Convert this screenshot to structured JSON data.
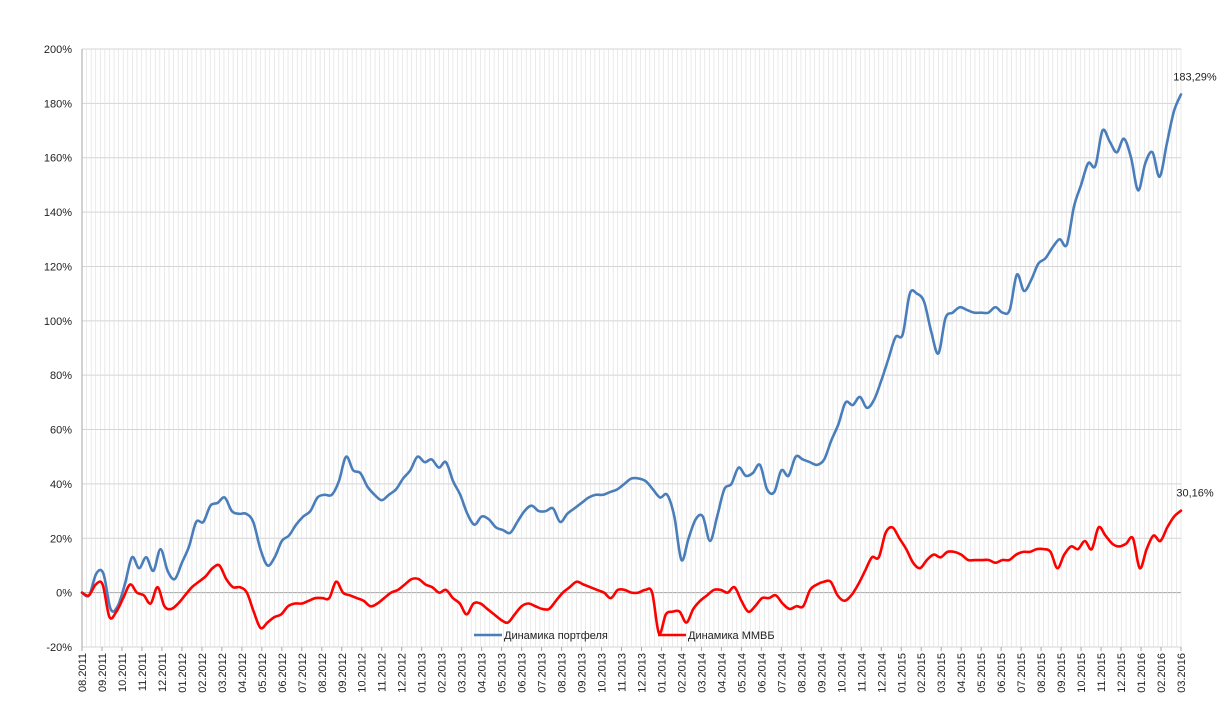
{
  "chart_data": {
    "type": "line",
    "y_tick_labels": [
      "-20%",
      "0%",
      "20%",
      "40%",
      "60%",
      "80%",
      "100%",
      "120%",
      "140%",
      "160%",
      "180%",
      "200%"
    ],
    "y_ticks": [
      -20,
      0,
      20,
      40,
      60,
      80,
      100,
      120,
      140,
      160,
      180,
      200
    ],
    "ylim": [
      -20,
      200
    ],
    "x_tick_labels": [
      "08.2011",
      "09.2011",
      "10.2011",
      "11.2011",
      "12.2011",
      "01.2012",
      "02.2012",
      "03.2012",
      "04.2012",
      "05.2012",
      "06.2012",
      "07.2012",
      "08.2012",
      "09.2012",
      "10.2012",
      "11.2012",
      "12.2012",
      "01.2013",
      "02.2013",
      "03.2013",
      "04.2013",
      "05.2013",
      "06.2013",
      "07.2013",
      "08.2013",
      "09.2013",
      "10.2013",
      "11.2013",
      "12.2013",
      "01.2014",
      "02.2014",
      "03.2014",
      "04.2014",
      "05.2014",
      "06.2014",
      "07.2014",
      "08.2014",
      "09.2014",
      "10.2014",
      "11.2014",
      "12.2014",
      "01.2015",
      "02.2015",
      "03.2015",
      "04.2015",
      "05.2015",
      "06.2015",
      "07.2015",
      "08.2015",
      "09.2015",
      "10.2015",
      "11.2015",
      "12.2015",
      "01.2016",
      "02.2016",
      "03.2016"
    ],
    "grid": true,
    "legend_position": "bottom-center",
    "series": [
      {
        "name": "Динамика портфеля",
        "color": "#4a7ebb",
        "end_label": "183,29%",
        "values": [
          0,
          -1,
          7,
          7,
          -6,
          -5,
          3,
          13,
          9,
          13,
          8,
          16,
          8,
          5,
          11,
          17,
          26,
          26,
          32,
          33,
          35,
          30,
          29,
          29,
          26,
          16,
          10,
          13,
          19,
          21,
          25,
          28,
          30,
          35,
          36,
          36,
          41,
          50,
          45,
          44,
          39,
          36,
          34,
          36,
          38,
          42,
          45,
          50,
          48,
          49,
          46,
          48,
          41,
          36,
          29,
          25,
          28,
          27,
          24,
          23,
          22,
          26,
          30,
          32,
          30,
          30,
          31,
          26,
          29,
          31,
          33,
          35,
          36,
          36,
          37,
          38,
          40,
          42,
          42,
          41,
          38,
          35,
          36,
          28,
          12,
          20,
          27,
          28,
          19,
          28,
          38,
          40,
          46,
          43,
          44,
          47,
          38,
          37,
          45,
          43,
          50,
          49,
          48,
          47,
          49,
          56,
          62,
          70,
          69,
          72,
          68,
          71,
          78,
          86,
          94,
          95,
          110,
          110,
          107,
          96,
          88,
          101,
          103,
          105,
          104,
          103,
          103,
          103,
          105,
          103,
          104,
          117,
          111,
          115,
          121,
          123,
          127,
          130,
          128,
          142,
          150,
          158,
          157,
          170,
          166,
          162,
          167,
          160,
          148,
          158,
          162,
          153,
          165,
          177,
          183.29
        ]
      },
      {
        "name": "Динамика ММВБ",
        "color": "#ff0000",
        "end_label": "30,16%",
        "values": [
          0,
          -1,
          3,
          3,
          -9,
          -7,
          -2,
          3,
          0,
          -1,
          -4,
          2,
          -5,
          -6,
          -4,
          -1,
          2,
          4,
          6,
          9,
          10,
          5,
          2,
          2,
          0,
          -7,
          -13,
          -11,
          -9,
          -8,
          -5,
          -4,
          -4,
          -3,
          -2,
          -2,
          -2,
          4,
          0,
          -1,
          -2,
          -3,
          -5,
          -4,
          -2,
          0,
          1,
          3,
          5,
          5,
          3,
          2,
          0,
          1,
          -2,
          -4,
          -8,
          -4,
          -4,
          -6,
          -8,
          -10,
          -11,
          -8,
          -5,
          -4,
          -5,
          -6,
          -6,
          -3,
          0,
          2,
          4,
          3,
          2,
          1,
          0,
          -2,
          1,
          1,
          0,
          0,
          1,
          0,
          -15,
          -8,
          -7,
          -7,
          -11,
          -6,
          -3,
          -1,
          1,
          1,
          0,
          2,
          -3,
          -7,
          -5,
          -2,
          -2,
          -1,
          -4,
          -6,
          -5,
          -5,
          1,
          3,
          4,
          4,
          -1,
          -3,
          -1,
          3,
          8,
          13,
          13,
          22,
          24,
          20,
          16,
          11,
          9,
          12,
          14,
          13,
          15,
          15,
          14,
          12,
          12,
          12,
          12,
          11,
          12,
          12,
          14,
          15,
          15,
          16,
          16,
          15,
          9,
          14,
          17,
          16,
          19,
          16,
          24,
          21,
          18,
          17,
          18,
          20,
          9,
          16,
          21,
          19,
          24,
          28,
          30.16
        ]
      }
    ]
  }
}
